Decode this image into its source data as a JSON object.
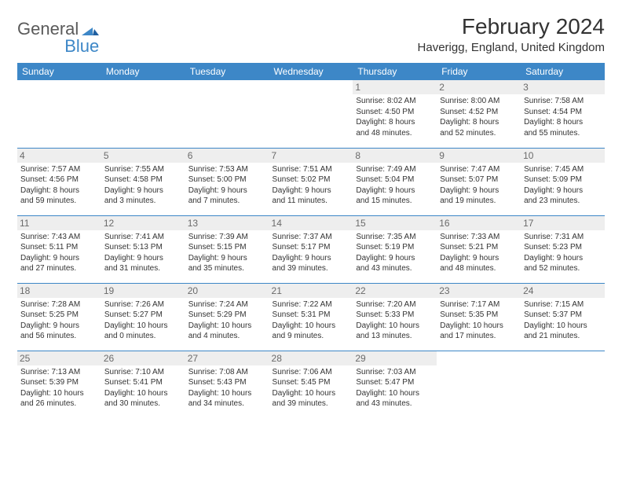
{
  "brand": {
    "general": "General",
    "blue": "Blue"
  },
  "title": "February 2024",
  "location": "Haverigg, England, United Kingdom",
  "columns": [
    "Sunday",
    "Monday",
    "Tuesday",
    "Wednesday",
    "Thursday",
    "Friday",
    "Saturday"
  ],
  "colors": {
    "header_bg": "#3d87c7",
    "header_text": "#ffffff",
    "border": "#3d87c7",
    "daynum_bg": "#eeeeee",
    "daynum_text": "#6a6a6a",
    "body_text": "#333333",
    "background": "#ffffff"
  },
  "typography": {
    "title_fontsize": 28,
    "location_fontsize": 15,
    "header_fontsize": 12,
    "daynum_fontsize": 12,
    "cell_fontsize": 10
  },
  "weeks": [
    [
      null,
      null,
      null,
      null,
      {
        "n": "1",
        "sr": "Sunrise: 8:02 AM",
        "ss": "Sunset: 4:50 PM",
        "d1": "Daylight: 8 hours",
        "d2": "and 48 minutes."
      },
      {
        "n": "2",
        "sr": "Sunrise: 8:00 AM",
        "ss": "Sunset: 4:52 PM",
        "d1": "Daylight: 8 hours",
        "d2": "and 52 minutes."
      },
      {
        "n": "3",
        "sr": "Sunrise: 7:58 AM",
        "ss": "Sunset: 4:54 PM",
        "d1": "Daylight: 8 hours",
        "d2": "and 55 minutes."
      }
    ],
    [
      {
        "n": "4",
        "sr": "Sunrise: 7:57 AM",
        "ss": "Sunset: 4:56 PM",
        "d1": "Daylight: 8 hours",
        "d2": "and 59 minutes."
      },
      {
        "n": "5",
        "sr": "Sunrise: 7:55 AM",
        "ss": "Sunset: 4:58 PM",
        "d1": "Daylight: 9 hours",
        "d2": "and 3 minutes."
      },
      {
        "n": "6",
        "sr": "Sunrise: 7:53 AM",
        "ss": "Sunset: 5:00 PM",
        "d1": "Daylight: 9 hours",
        "d2": "and 7 minutes."
      },
      {
        "n": "7",
        "sr": "Sunrise: 7:51 AM",
        "ss": "Sunset: 5:02 PM",
        "d1": "Daylight: 9 hours",
        "d2": "and 11 minutes."
      },
      {
        "n": "8",
        "sr": "Sunrise: 7:49 AM",
        "ss": "Sunset: 5:04 PM",
        "d1": "Daylight: 9 hours",
        "d2": "and 15 minutes."
      },
      {
        "n": "9",
        "sr": "Sunrise: 7:47 AM",
        "ss": "Sunset: 5:07 PM",
        "d1": "Daylight: 9 hours",
        "d2": "and 19 minutes."
      },
      {
        "n": "10",
        "sr": "Sunrise: 7:45 AM",
        "ss": "Sunset: 5:09 PM",
        "d1": "Daylight: 9 hours",
        "d2": "and 23 minutes."
      }
    ],
    [
      {
        "n": "11",
        "sr": "Sunrise: 7:43 AM",
        "ss": "Sunset: 5:11 PM",
        "d1": "Daylight: 9 hours",
        "d2": "and 27 minutes."
      },
      {
        "n": "12",
        "sr": "Sunrise: 7:41 AM",
        "ss": "Sunset: 5:13 PM",
        "d1": "Daylight: 9 hours",
        "d2": "and 31 minutes."
      },
      {
        "n": "13",
        "sr": "Sunrise: 7:39 AM",
        "ss": "Sunset: 5:15 PM",
        "d1": "Daylight: 9 hours",
        "d2": "and 35 minutes."
      },
      {
        "n": "14",
        "sr": "Sunrise: 7:37 AM",
        "ss": "Sunset: 5:17 PM",
        "d1": "Daylight: 9 hours",
        "d2": "and 39 minutes."
      },
      {
        "n": "15",
        "sr": "Sunrise: 7:35 AM",
        "ss": "Sunset: 5:19 PM",
        "d1": "Daylight: 9 hours",
        "d2": "and 43 minutes."
      },
      {
        "n": "16",
        "sr": "Sunrise: 7:33 AM",
        "ss": "Sunset: 5:21 PM",
        "d1": "Daylight: 9 hours",
        "d2": "and 48 minutes."
      },
      {
        "n": "17",
        "sr": "Sunrise: 7:31 AM",
        "ss": "Sunset: 5:23 PM",
        "d1": "Daylight: 9 hours",
        "d2": "and 52 minutes."
      }
    ],
    [
      {
        "n": "18",
        "sr": "Sunrise: 7:28 AM",
        "ss": "Sunset: 5:25 PM",
        "d1": "Daylight: 9 hours",
        "d2": "and 56 minutes."
      },
      {
        "n": "19",
        "sr": "Sunrise: 7:26 AM",
        "ss": "Sunset: 5:27 PM",
        "d1": "Daylight: 10 hours",
        "d2": "and 0 minutes."
      },
      {
        "n": "20",
        "sr": "Sunrise: 7:24 AM",
        "ss": "Sunset: 5:29 PM",
        "d1": "Daylight: 10 hours",
        "d2": "and 4 minutes."
      },
      {
        "n": "21",
        "sr": "Sunrise: 7:22 AM",
        "ss": "Sunset: 5:31 PM",
        "d1": "Daylight: 10 hours",
        "d2": "and 9 minutes."
      },
      {
        "n": "22",
        "sr": "Sunrise: 7:20 AM",
        "ss": "Sunset: 5:33 PM",
        "d1": "Daylight: 10 hours",
        "d2": "and 13 minutes."
      },
      {
        "n": "23",
        "sr": "Sunrise: 7:17 AM",
        "ss": "Sunset: 5:35 PM",
        "d1": "Daylight: 10 hours",
        "d2": "and 17 minutes."
      },
      {
        "n": "24",
        "sr": "Sunrise: 7:15 AM",
        "ss": "Sunset: 5:37 PM",
        "d1": "Daylight: 10 hours",
        "d2": "and 21 minutes."
      }
    ],
    [
      {
        "n": "25",
        "sr": "Sunrise: 7:13 AM",
        "ss": "Sunset: 5:39 PM",
        "d1": "Daylight: 10 hours",
        "d2": "and 26 minutes."
      },
      {
        "n": "26",
        "sr": "Sunrise: 7:10 AM",
        "ss": "Sunset: 5:41 PM",
        "d1": "Daylight: 10 hours",
        "d2": "and 30 minutes."
      },
      {
        "n": "27",
        "sr": "Sunrise: 7:08 AM",
        "ss": "Sunset: 5:43 PM",
        "d1": "Daylight: 10 hours",
        "d2": "and 34 minutes."
      },
      {
        "n": "28",
        "sr": "Sunrise: 7:06 AM",
        "ss": "Sunset: 5:45 PM",
        "d1": "Daylight: 10 hours",
        "d2": "and 39 minutes."
      },
      {
        "n": "29",
        "sr": "Sunrise: 7:03 AM",
        "ss": "Sunset: 5:47 PM",
        "d1": "Daylight: 10 hours",
        "d2": "and 43 minutes."
      },
      null,
      null
    ]
  ]
}
